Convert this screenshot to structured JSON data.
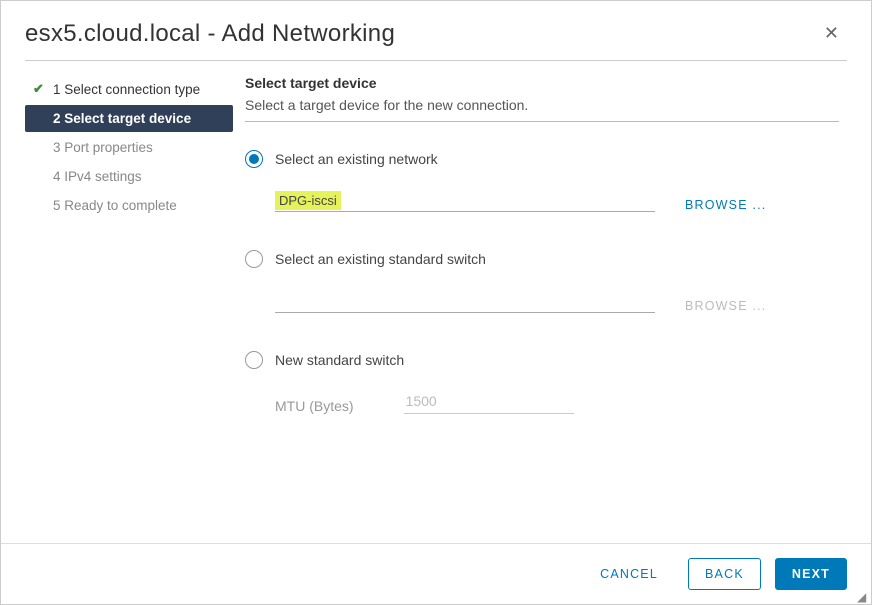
{
  "colors": {
    "primary": "#0079b8",
    "sidebar_active_bg": "#314059",
    "success": "#3f8c3a",
    "highlight_bg": "#e6f25a",
    "border": "#cccccc",
    "text": "#333333",
    "muted": "#888888"
  },
  "header": {
    "title": "esx5.cloud.local - Add Networking"
  },
  "steps": [
    {
      "label": "1 Select connection type",
      "state": "done"
    },
    {
      "label": "2 Select target device",
      "state": "active"
    },
    {
      "label": "3 Port properties",
      "state": "pending"
    },
    {
      "label": "4 IPv4 settings",
      "state": "pending"
    },
    {
      "label": "5 Ready to complete",
      "state": "pending"
    }
  ],
  "section": {
    "title": "Select target device",
    "description": "Select a target device for the new connection."
  },
  "options": {
    "existing_network": {
      "label": "Select an existing network",
      "selected": true,
      "value": "DPG-iscsi",
      "browse_label": "BROWSE ...",
      "browse_enabled": true
    },
    "existing_switch": {
      "label": "Select an existing standard switch",
      "selected": false,
      "value": "",
      "browse_label": "BROWSE ...",
      "browse_enabled": false
    },
    "new_switch": {
      "label": "New standard switch",
      "selected": false,
      "mtu_label": "MTU (Bytes)",
      "mtu_value": "1500"
    }
  },
  "footer": {
    "cancel": "CANCEL",
    "back": "BACK",
    "next": "NEXT"
  }
}
